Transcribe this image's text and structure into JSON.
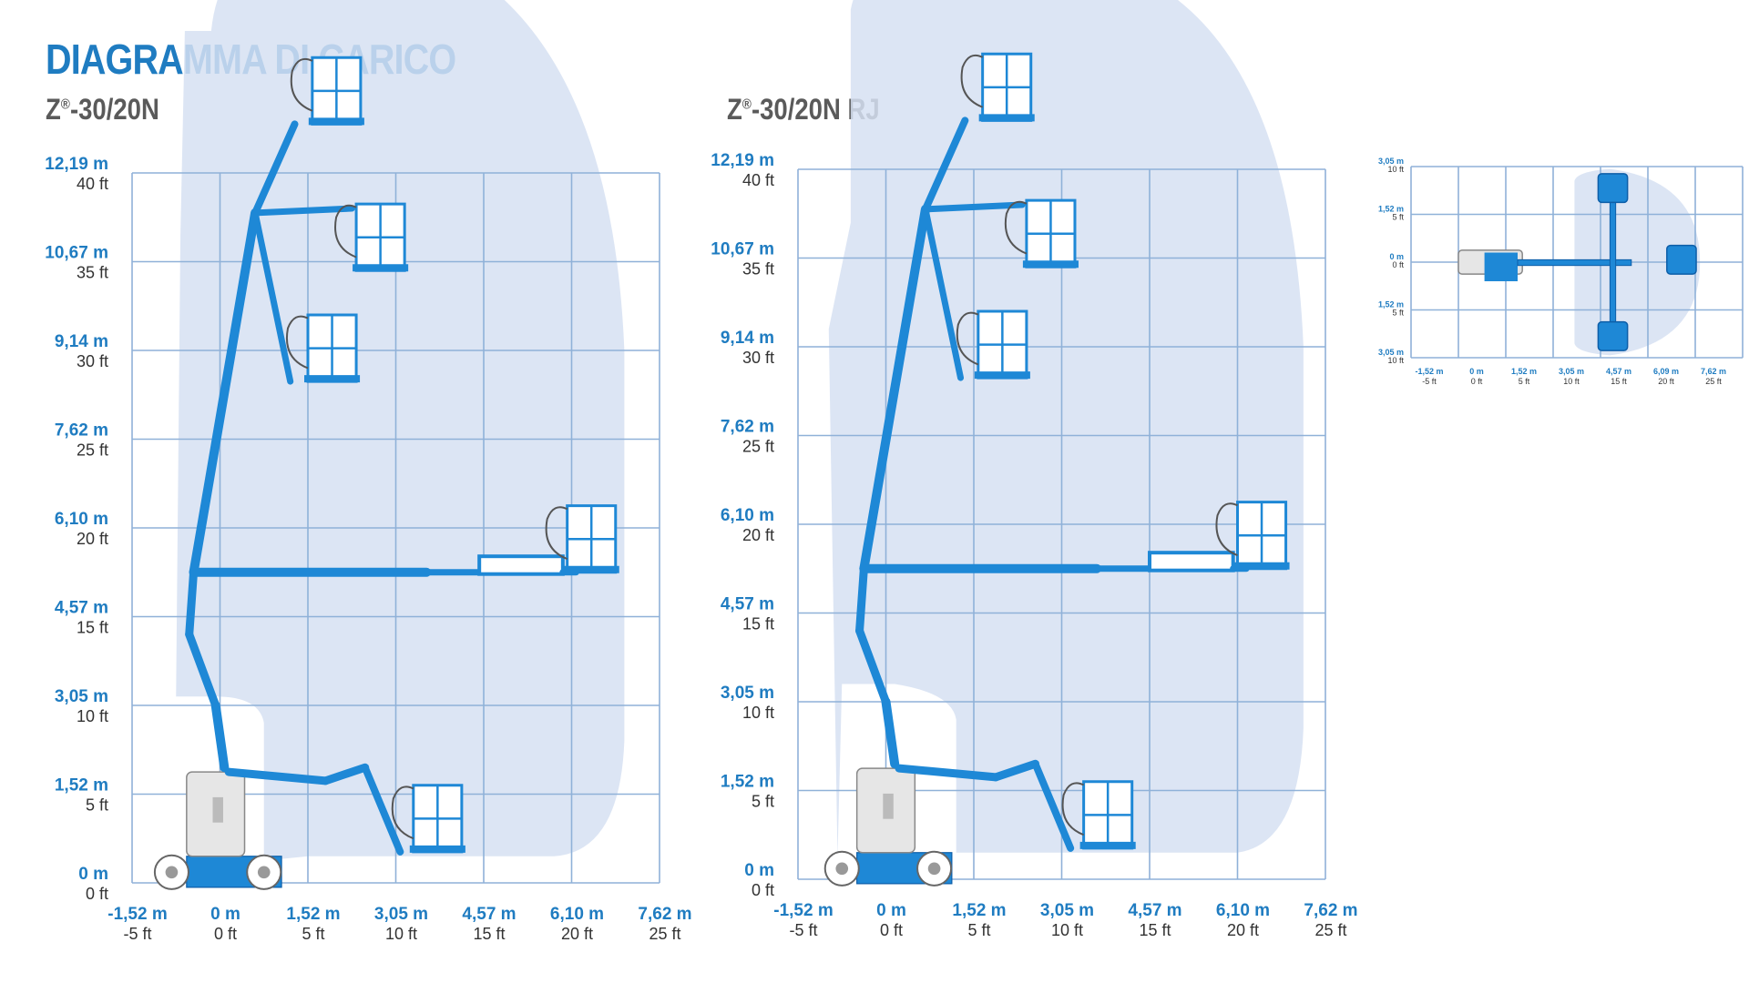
{
  "title": "DIAGRAMMA DI CARICO",
  "models": {
    "left": {
      "prefix": "Z",
      "reg": "®",
      "suffix": "-30/20N"
    },
    "right": {
      "prefix": "Z",
      "reg": "®",
      "suffix": "-30/20N RJ"
    }
  },
  "colors": {
    "accent": "#1f7cc1",
    "machine": "#1e88d6",
    "envelope": "#d6e1f2",
    "grid": "#8fb1d8",
    "subtitle": "#5a5a5a"
  },
  "chart_data": [
    {
      "type": "table",
      "name": "working-envelope-Z-30/20N",
      "x_ticks": [
        {
          "m": "-1,52 m",
          "ft": "-5 ft"
        },
        {
          "m": "0 m",
          "ft": "0 ft"
        },
        {
          "m": "1,52 m",
          "ft": "5 ft"
        },
        {
          "m": "3,05 m",
          "ft": "10 ft"
        },
        {
          "m": "4,57 m",
          "ft": "15 ft"
        },
        {
          "m": "6,10 m",
          "ft": "20 ft"
        },
        {
          "m": "7,62 m",
          "ft": "25 ft"
        }
      ],
      "y_ticks": [
        {
          "m": "12,19 m",
          "ft": "40 ft"
        },
        {
          "m": "10,67 m",
          "ft": "35 ft"
        },
        {
          "m": "9,14 m",
          "ft": "30 ft"
        },
        {
          "m": "7,62 m",
          "ft": "25 ft"
        },
        {
          "m": "6,10 m",
          "ft": "20 ft"
        },
        {
          "m": "4,57 m",
          "ft": "15 ft"
        },
        {
          "m": "3,05 m",
          "ft": "10 ft"
        },
        {
          "m": "1,52 m",
          "ft": "5 ft"
        },
        {
          "m": "0 m",
          "ft": "0 ft"
        }
      ],
      "xlim": [
        -1.52,
        7.62
      ],
      "ylim": [
        0,
        12.19
      ]
    },
    {
      "type": "table",
      "name": "working-envelope-Z-30/20N-RJ",
      "x_ticks": [
        {
          "m": "-1,52 m",
          "ft": "-5 ft"
        },
        {
          "m": "0 m",
          "ft": "0 ft"
        },
        {
          "m": "1,52 m",
          "ft": "5 ft"
        },
        {
          "m": "3,05 m",
          "ft": "10 ft"
        },
        {
          "m": "4,57 m",
          "ft": "15 ft"
        },
        {
          "m": "6,10 m",
          "ft": "20 ft"
        },
        {
          "m": "7,62 m",
          "ft": "25 ft"
        }
      ],
      "y_ticks": [
        {
          "m": "12,19 m",
          "ft": "40 ft"
        },
        {
          "m": "10,67 m",
          "ft": "35 ft"
        },
        {
          "m": "9,14 m",
          "ft": "30 ft"
        },
        {
          "m": "7,62 m",
          "ft": "25 ft"
        },
        {
          "m": "6,10 m",
          "ft": "20 ft"
        },
        {
          "m": "4,57 m",
          "ft": "15 ft"
        },
        {
          "m": "3,05 m",
          "ft": "10 ft"
        },
        {
          "m": "1,52 m",
          "ft": "5 ft"
        },
        {
          "m": "0 m",
          "ft": "0 ft"
        }
      ],
      "xlim": [
        -1.52,
        7.62
      ],
      "ylim": [
        0,
        12.19
      ]
    },
    {
      "type": "table",
      "name": "top-view-jib-rotation",
      "x_ticks": [
        {
          "m": "-1,52 m",
          "ft": "-5 ft"
        },
        {
          "m": "0 m",
          "ft": "0 ft"
        },
        {
          "m": "1,52 m",
          "ft": "5 ft"
        },
        {
          "m": "3,05 m",
          "ft": "10 ft"
        },
        {
          "m": "4,57 m",
          "ft": "15 ft"
        },
        {
          "m": "6,09 m",
          "ft": "20 ft"
        },
        {
          "m": "7,62 m",
          "ft": "25 ft"
        }
      ],
      "y_ticks": [
        {
          "m": "3,05 m",
          "ft": "10 ft"
        },
        {
          "m": "1,52 m",
          "ft": "5 ft"
        },
        {
          "m": "0 m",
          "ft": "0 ft"
        },
        {
          "m": "1,52 m",
          "ft": "5 ft"
        },
        {
          "m": "3,05 m",
          "ft": "10 ft"
        }
      ]
    }
  ]
}
